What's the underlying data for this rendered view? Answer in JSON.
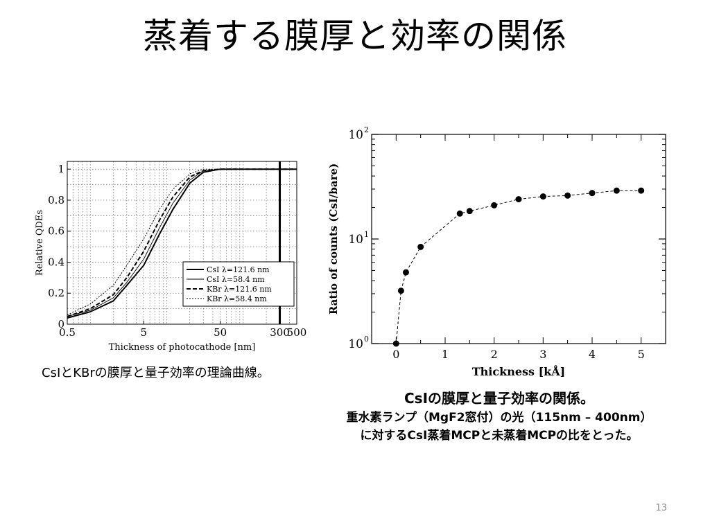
{
  "slide": {
    "title": "蒸着する膜厚と効率の関係",
    "page_number": "13"
  },
  "left_figure": {
    "caption": "CsIとKBrの膜厚と量子効率の理論曲線。"
  },
  "right_figure": {
    "caption_title": "CsIの膜厚と量子効率の関係。",
    "caption_line1": "重水素ランプ（MgF2窓付）の光（115nm – 400nm）",
    "caption_line2": "に対するCsI蒸着MCPと未蒸着MCPの比をとった。"
  },
  "chart_data": [
    {
      "type": "line",
      "xlabel": "Thickness of photocathode [nm]",
      "ylabel": "Relative QDEs",
      "x_scale": "log",
      "xlim": [
        0.5,
        500
      ],
      "ylim": [
        0,
        1.05
      ],
      "x_tick_labels": [
        "0.5",
        "5",
        "50",
        "300",
        "500"
      ],
      "x_tick_values": [
        0.5,
        5,
        50,
        300,
        500
      ],
      "y_tick_labels": [
        "0",
        "0.2",
        "0.4",
        "0.6",
        "0.8",
        "1"
      ],
      "y_tick_values": [
        0,
        0.2,
        0.4,
        0.6,
        0.8,
        1
      ],
      "grid": true,
      "legend_position": "bottom-right",
      "vertical_marker_x": 300,
      "series": [
        {
          "name": "CsI  λ=121.6 nm",
          "style": "solid-thick",
          "x": [
            0.5,
            1,
            2,
            3,
            5,
            8,
            12,
            20,
            30,
            50,
            500
          ],
          "y": [
            0.04,
            0.08,
            0.15,
            0.25,
            0.38,
            0.58,
            0.74,
            0.91,
            0.98,
            1.0,
            1.0
          ]
        },
        {
          "name": "CsI  λ=58.4 nm",
          "style": "solid-thin",
          "x": [
            0.5,
            1,
            2,
            3,
            5,
            8,
            12,
            20,
            30,
            50,
            500
          ],
          "y": [
            0.05,
            0.09,
            0.17,
            0.27,
            0.42,
            0.62,
            0.78,
            0.93,
            0.99,
            1.0,
            1.0
          ]
        },
        {
          "name": "KBr  λ=121.6 nm",
          "style": "dashed-thick",
          "x": [
            0.5,
            1,
            2,
            3,
            5,
            8,
            12,
            20,
            30,
            50,
            500
          ],
          "y": [
            0.05,
            0.1,
            0.19,
            0.3,
            0.47,
            0.67,
            0.82,
            0.95,
            0.99,
            1.0,
            1.0
          ]
        },
        {
          "name": "KBr  λ=58.4 nm",
          "style": "dotted-thin",
          "x": [
            0.5,
            1,
            2,
            3,
            5,
            8,
            12,
            20,
            30,
            50,
            500
          ],
          "y": [
            0.06,
            0.13,
            0.25,
            0.38,
            0.55,
            0.74,
            0.87,
            0.97,
            1.0,
            1.0,
            1.0
          ]
        }
      ]
    },
    {
      "type": "scatter",
      "xlabel": "Thickness [kÅ]",
      "ylabel": "Ratio of counts (CsI/bare)",
      "y_scale": "log",
      "xlim": [
        -0.5,
        5.5
      ],
      "ylim": [
        1,
        100
      ],
      "x_tick_labels": [
        "0",
        "1",
        "2",
        "3",
        "4",
        "5"
      ],
      "x_tick_values": [
        0,
        1,
        2,
        3,
        4,
        5
      ],
      "y_tick_labels": [
        "10",
        "10",
        "10"
      ],
      "y_tick_exponents": [
        "0",
        "1",
        "2"
      ],
      "y_tick_values": [
        1,
        10,
        100
      ],
      "grid": false,
      "connected": "dashed",
      "points": {
        "x": [
          0,
          0.1,
          0.2,
          0.5,
          1.3,
          1.5,
          2.0,
          2.5,
          3.0,
          3.5,
          4.0,
          4.5,
          5.0
        ],
        "y": [
          1.0,
          3.2,
          4.8,
          8.4,
          17.5,
          18.5,
          21.0,
          24.0,
          25.5,
          26.0,
          27.5,
          29.0,
          29.0
        ]
      }
    }
  ]
}
